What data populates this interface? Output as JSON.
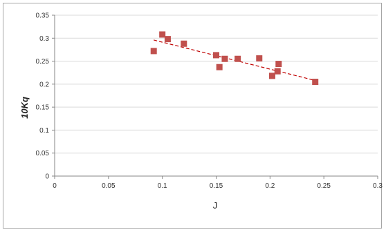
{
  "chart_data": {
    "type": "scatter",
    "title": "",
    "xlabel": "J",
    "ylabel": "10Kq",
    "xlim": [
      0,
      0.3
    ],
    "ylim": [
      0,
      0.35
    ],
    "xticks": [
      "0",
      "0.05",
      "0.1",
      "0.15",
      "0.2",
      "0.25",
      "0.3"
    ],
    "yticks": [
      "0",
      "0.05",
      "0.1",
      "0.15",
      "0.2",
      "0.25",
      "0.3",
      "0.35"
    ],
    "grid": "horizontal",
    "legend": "none",
    "marker_color": "#c0504d",
    "trendline_color": "#c00000",
    "series": [
      {
        "points": [
          [
            0.092,
            0.272
          ],
          [
            0.1,
            0.308
          ],
          [
            0.105,
            0.298
          ],
          [
            0.12,
            0.288
          ],
          [
            0.15,
            0.263
          ],
          [
            0.153,
            0.237
          ],
          [
            0.158,
            0.255
          ],
          [
            0.17,
            0.255
          ],
          [
            0.19,
            0.256
          ],
          [
            0.202,
            0.218
          ],
          [
            0.207,
            0.228
          ],
          [
            0.208,
            0.244
          ],
          [
            0.242,
            0.205
          ]
        ],
        "trendline": {
          "type": "linear",
          "x": [
            0.092,
            0.242
          ],
          "y": [
            0.296,
            0.208
          ]
        }
      }
    ]
  }
}
